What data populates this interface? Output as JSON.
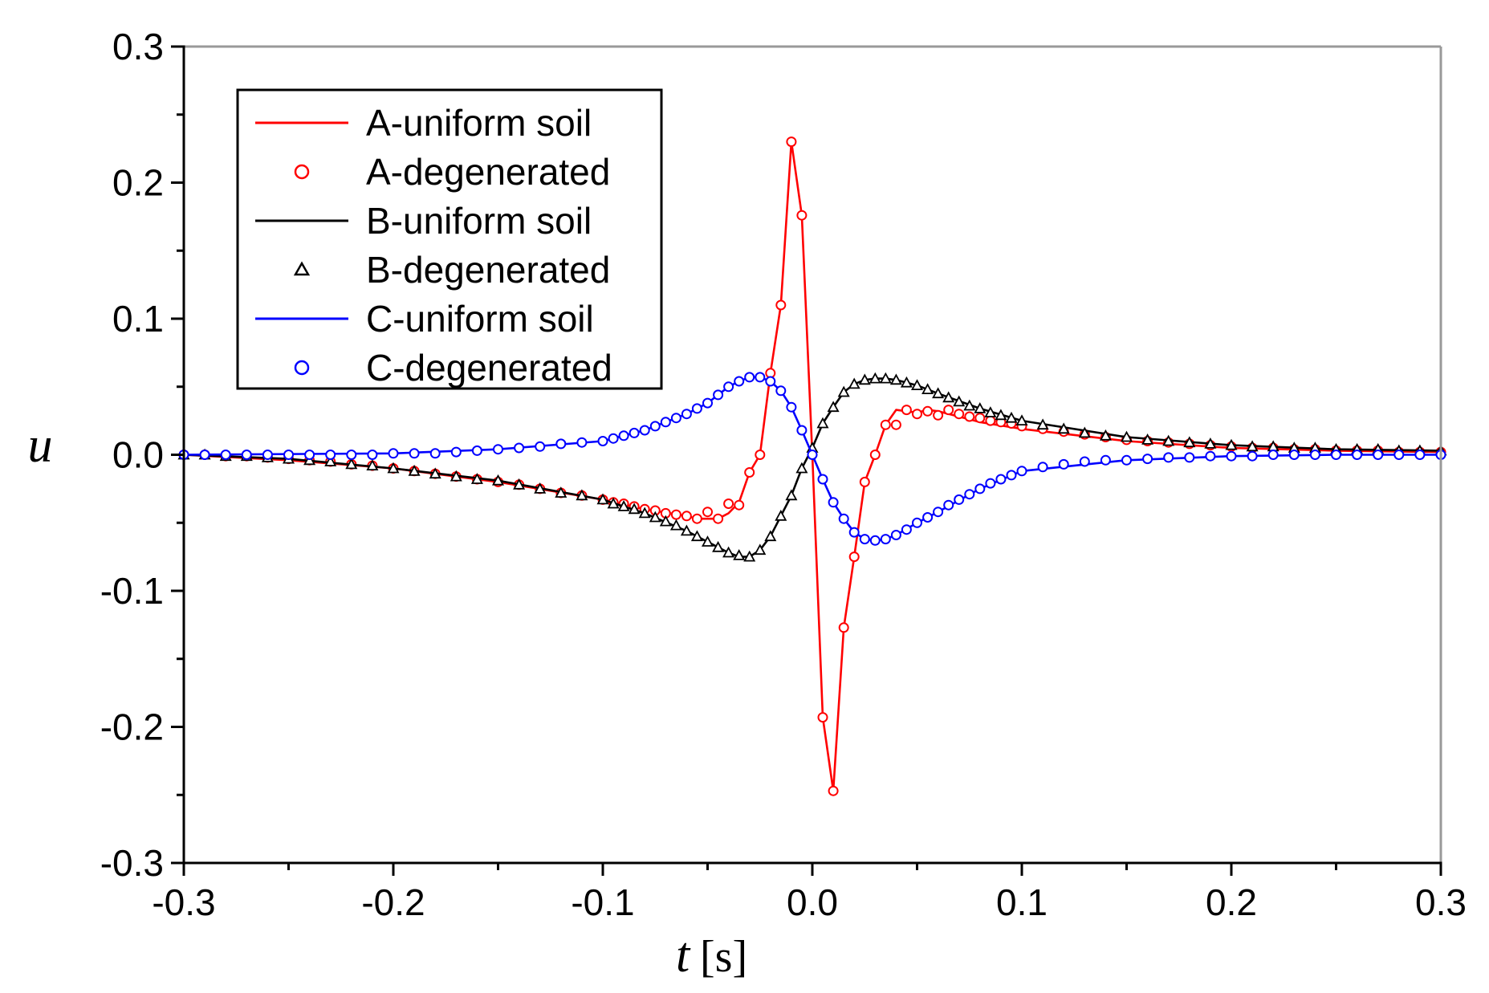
{
  "chart_data": {
    "type": "line",
    "title": "",
    "xlabel": "t",
    "xlabel_unit": "[s]",
    "ylabel": "u",
    "xlim": [
      -0.3,
      0.3
    ],
    "ylim": [
      -0.3,
      0.3
    ],
    "xticks": [
      -0.3,
      -0.2,
      -0.1,
      0.0,
      0.1,
      0.2,
      0.3
    ],
    "yticks": [
      -0.3,
      -0.2,
      -0.1,
      0.0,
      0.1,
      0.2,
      0.3
    ],
    "xtick_labels": [
      "-0.3",
      "-0.2",
      "-0.1",
      "0.0",
      "0.1",
      "0.2",
      "0.3"
    ],
    "ytick_labels": [
      "-0.3",
      "-0.2",
      "-0.1",
      "0.0",
      "0.1",
      "0.2",
      "0.3"
    ],
    "grid": false,
    "legend_position": "top-left",
    "series": [
      {
        "name": "A-uniform soil",
        "color": "#ff0000",
        "style": "line",
        "x": [
          -0.3,
          -0.25,
          -0.2,
          -0.15,
          -0.1,
          -0.08,
          -0.06,
          -0.055,
          -0.05,
          -0.045,
          -0.04,
          -0.035,
          -0.03,
          -0.025,
          -0.02,
          -0.015,
          -0.01,
          -0.005,
          0.0,
          0.005,
          0.01,
          0.015,
          0.02,
          0.025,
          0.03,
          0.035,
          0.04,
          0.045,
          0.05,
          0.055,
          0.06,
          0.07,
          0.08,
          0.1,
          0.15,
          0.2,
          0.25,
          0.3
        ],
        "y": [
          0.0,
          -0.004,
          -0.01,
          -0.02,
          -0.033,
          -0.04,
          -0.045,
          -0.047,
          -0.047,
          -0.047,
          -0.043,
          -0.035,
          -0.013,
          0.0,
          0.06,
          0.11,
          0.23,
          0.176,
          0.0,
          -0.193,
          -0.247,
          -0.127,
          -0.075,
          -0.02,
          0.0,
          0.022,
          0.033,
          0.032,
          0.031,
          0.033,
          0.032,
          0.028,
          0.024,
          0.019,
          0.01,
          0.005,
          0.003,
          0.002
        ]
      },
      {
        "name": "A-degenerated",
        "color": "#ff0000",
        "style": "marker-circle",
        "x": [
          -0.3,
          -0.29,
          -0.28,
          -0.27,
          -0.26,
          -0.25,
          -0.24,
          -0.23,
          -0.22,
          -0.21,
          -0.2,
          -0.19,
          -0.18,
          -0.17,
          -0.16,
          -0.15,
          -0.14,
          -0.13,
          -0.12,
          -0.11,
          -0.1,
          -0.095,
          -0.09,
          -0.085,
          -0.08,
          -0.075,
          -0.07,
          -0.065,
          -0.06,
          -0.055,
          -0.05,
          -0.045,
          -0.04,
          -0.035,
          -0.03,
          -0.025,
          -0.02,
          -0.015,
          -0.01,
          -0.005,
          0.005,
          0.01,
          0.015,
          0.02,
          0.025,
          0.03,
          0.035,
          0.04,
          0.045,
          0.05,
          0.055,
          0.06,
          0.065,
          0.07,
          0.075,
          0.08,
          0.085,
          0.09,
          0.095,
          0.1,
          0.11,
          0.12,
          0.13,
          0.14,
          0.15,
          0.16,
          0.17,
          0.18,
          0.19,
          0.2,
          0.21,
          0.22,
          0.23,
          0.24,
          0.25,
          0.26,
          0.27,
          0.28,
          0.29,
          0.3
        ],
        "y": [
          0.0,
          0.0,
          -0.001,
          -0.001,
          -0.002,
          -0.003,
          -0.004,
          -0.005,
          -0.007,
          -0.008,
          -0.01,
          -0.012,
          -0.014,
          -0.016,
          -0.018,
          -0.02,
          -0.022,
          -0.025,
          -0.028,
          -0.03,
          -0.033,
          -0.035,
          -0.036,
          -0.038,
          -0.04,
          -0.041,
          -0.043,
          -0.044,
          -0.045,
          -0.047,
          -0.042,
          -0.047,
          -0.036,
          -0.037,
          -0.013,
          0.0,
          0.06,
          0.11,
          0.23,
          0.176,
          -0.193,
          -0.247,
          -0.127,
          -0.075,
          -0.02,
          0.0,
          0.022,
          0.022,
          0.033,
          0.03,
          0.032,
          0.029,
          0.033,
          0.03,
          0.028,
          0.027,
          0.025,
          0.024,
          0.023,
          0.021,
          0.019,
          0.017,
          0.015,
          0.013,
          0.011,
          0.01,
          0.009,
          0.008,
          0.007,
          0.006,
          0.005,
          0.005,
          0.004,
          0.004,
          0.003,
          0.003,
          0.003,
          0.002,
          0.002,
          0.002
        ]
      },
      {
        "name": "B-uniform soil",
        "color": "#000000",
        "style": "line",
        "x": [
          -0.3,
          -0.25,
          -0.2,
          -0.15,
          -0.1,
          -0.08,
          -0.06,
          -0.05,
          -0.04,
          -0.035,
          -0.03,
          -0.025,
          -0.02,
          -0.015,
          -0.01,
          -0.005,
          0.0,
          0.005,
          0.01,
          0.015,
          0.02,
          0.025,
          0.03,
          0.035,
          0.04,
          0.05,
          0.06,
          0.08,
          0.1,
          0.15,
          0.2,
          0.25,
          0.3
        ],
        "y": [
          0.0,
          -0.003,
          -0.01,
          -0.019,
          -0.033,
          -0.043,
          -0.056,
          -0.064,
          -0.072,
          -0.075,
          -0.075,
          -0.07,
          -0.06,
          -0.045,
          -0.03,
          -0.01,
          0.005,
          0.023,
          0.035,
          0.046,
          0.052,
          0.055,
          0.056,
          0.056,
          0.055,
          0.051,
          0.045,
          0.034,
          0.025,
          0.013,
          0.007,
          0.004,
          0.003
        ]
      },
      {
        "name": "B-degenerated",
        "color": "#000000",
        "style": "marker-triangle",
        "x": [
          -0.3,
          -0.29,
          -0.28,
          -0.27,
          -0.26,
          -0.25,
          -0.24,
          -0.23,
          -0.22,
          -0.21,
          -0.2,
          -0.19,
          -0.18,
          -0.17,
          -0.16,
          -0.15,
          -0.14,
          -0.13,
          -0.12,
          -0.11,
          -0.1,
          -0.095,
          -0.09,
          -0.085,
          -0.08,
          -0.075,
          -0.07,
          -0.065,
          -0.06,
          -0.055,
          -0.05,
          -0.045,
          -0.04,
          -0.035,
          -0.03,
          -0.025,
          -0.02,
          -0.015,
          -0.01,
          -0.005,
          0.0,
          0.005,
          0.01,
          0.015,
          0.02,
          0.025,
          0.03,
          0.035,
          0.04,
          0.045,
          0.05,
          0.055,
          0.06,
          0.065,
          0.07,
          0.075,
          0.08,
          0.085,
          0.09,
          0.095,
          0.1,
          0.11,
          0.12,
          0.13,
          0.14,
          0.15,
          0.16,
          0.17,
          0.18,
          0.19,
          0.2,
          0.21,
          0.22,
          0.23,
          0.24,
          0.25,
          0.26,
          0.27,
          0.28,
          0.29,
          0.3
        ],
        "y": [
          0.0,
          0.0,
          -0.001,
          -0.001,
          -0.002,
          -0.003,
          -0.004,
          -0.005,
          -0.007,
          -0.008,
          -0.01,
          -0.012,
          -0.014,
          -0.016,
          -0.018,
          -0.019,
          -0.022,
          -0.025,
          -0.028,
          -0.03,
          -0.033,
          -0.036,
          -0.038,
          -0.04,
          -0.043,
          -0.046,
          -0.049,
          -0.052,
          -0.056,
          -0.06,
          -0.064,
          -0.068,
          -0.072,
          -0.074,
          -0.075,
          -0.07,
          -0.06,
          -0.045,
          -0.03,
          -0.01,
          0.005,
          0.023,
          0.035,
          0.046,
          0.052,
          0.055,
          0.056,
          0.056,
          0.055,
          0.053,
          0.051,
          0.048,
          0.045,
          0.042,
          0.039,
          0.036,
          0.034,
          0.031,
          0.029,
          0.027,
          0.025,
          0.022,
          0.019,
          0.016,
          0.014,
          0.013,
          0.011,
          0.01,
          0.009,
          0.008,
          0.007,
          0.006,
          0.006,
          0.005,
          0.005,
          0.004,
          0.004,
          0.004,
          0.003,
          0.003,
          0.003
        ]
      },
      {
        "name": "C-uniform soil",
        "color": "#0000ff",
        "style": "line",
        "x": [
          -0.3,
          -0.2,
          -0.15,
          -0.1,
          -0.08,
          -0.06,
          -0.05,
          -0.04,
          -0.035,
          -0.03,
          -0.025,
          -0.02,
          -0.015,
          -0.01,
          -0.005,
          0.0,
          0.005,
          0.01,
          0.015,
          0.02,
          0.025,
          0.03,
          0.035,
          0.04,
          0.05,
          0.06,
          0.08,
          0.1,
          0.15,
          0.2,
          0.25,
          0.3
        ],
        "y": [
          0.0,
          0.001,
          0.004,
          0.01,
          0.018,
          0.03,
          0.038,
          0.05,
          0.054,
          0.057,
          0.057,
          0.054,
          0.047,
          0.035,
          0.018,
          0.0,
          -0.018,
          -0.035,
          -0.047,
          -0.057,
          -0.062,
          -0.063,
          -0.062,
          -0.059,
          -0.05,
          -0.042,
          -0.025,
          -0.012,
          -0.004,
          -0.001,
          0.0,
          0.0
        ]
      },
      {
        "name": "C-degenerated",
        "color": "#0000ff",
        "style": "marker-circle",
        "x": [
          -0.3,
          -0.29,
          -0.28,
          -0.27,
          -0.26,
          -0.25,
          -0.24,
          -0.23,
          -0.22,
          -0.21,
          -0.2,
          -0.19,
          -0.18,
          -0.17,
          -0.16,
          -0.15,
          -0.14,
          -0.13,
          -0.12,
          -0.11,
          -0.1,
          -0.095,
          -0.09,
          -0.085,
          -0.08,
          -0.075,
          -0.07,
          -0.065,
          -0.06,
          -0.055,
          -0.05,
          -0.045,
          -0.04,
          -0.035,
          -0.03,
          -0.025,
          -0.02,
          -0.015,
          -0.01,
          -0.005,
          0.0,
          0.005,
          0.01,
          0.015,
          0.02,
          0.025,
          0.03,
          0.035,
          0.04,
          0.045,
          0.05,
          0.055,
          0.06,
          0.065,
          0.07,
          0.075,
          0.08,
          0.085,
          0.09,
          0.095,
          0.1,
          0.11,
          0.12,
          0.13,
          0.14,
          0.15,
          0.16,
          0.17,
          0.18,
          0.19,
          0.2,
          0.21,
          0.22,
          0.23,
          0.24,
          0.25,
          0.26,
          0.27,
          0.28,
          0.29,
          0.3
        ],
        "y": [
          0.0,
          0.0,
          0.0,
          0.0,
          0.0,
          0.0,
          0.0,
          0.0,
          0.0,
          0.0,
          0.001,
          0.001,
          0.001,
          0.002,
          0.003,
          0.004,
          0.005,
          0.006,
          0.008,
          0.009,
          0.01,
          0.012,
          0.014,
          0.016,
          0.018,
          0.021,
          0.024,
          0.027,
          0.03,
          0.034,
          0.038,
          0.044,
          0.05,
          0.054,
          0.057,
          0.057,
          0.054,
          0.047,
          0.035,
          0.018,
          0.0,
          -0.018,
          -0.035,
          -0.047,
          -0.057,
          -0.062,
          -0.063,
          -0.062,
          -0.059,
          -0.055,
          -0.05,
          -0.046,
          -0.042,
          -0.037,
          -0.033,
          -0.029,
          -0.025,
          -0.021,
          -0.018,
          -0.015,
          -0.012,
          -0.009,
          -0.007,
          -0.005,
          -0.004,
          -0.004,
          -0.003,
          -0.002,
          -0.002,
          -0.001,
          -0.001,
          -0.001,
          0.0,
          0.0,
          0.0,
          0.0,
          0.0,
          0.0,
          0.0,
          0.0,
          0.0
        ]
      }
    ]
  }
}
